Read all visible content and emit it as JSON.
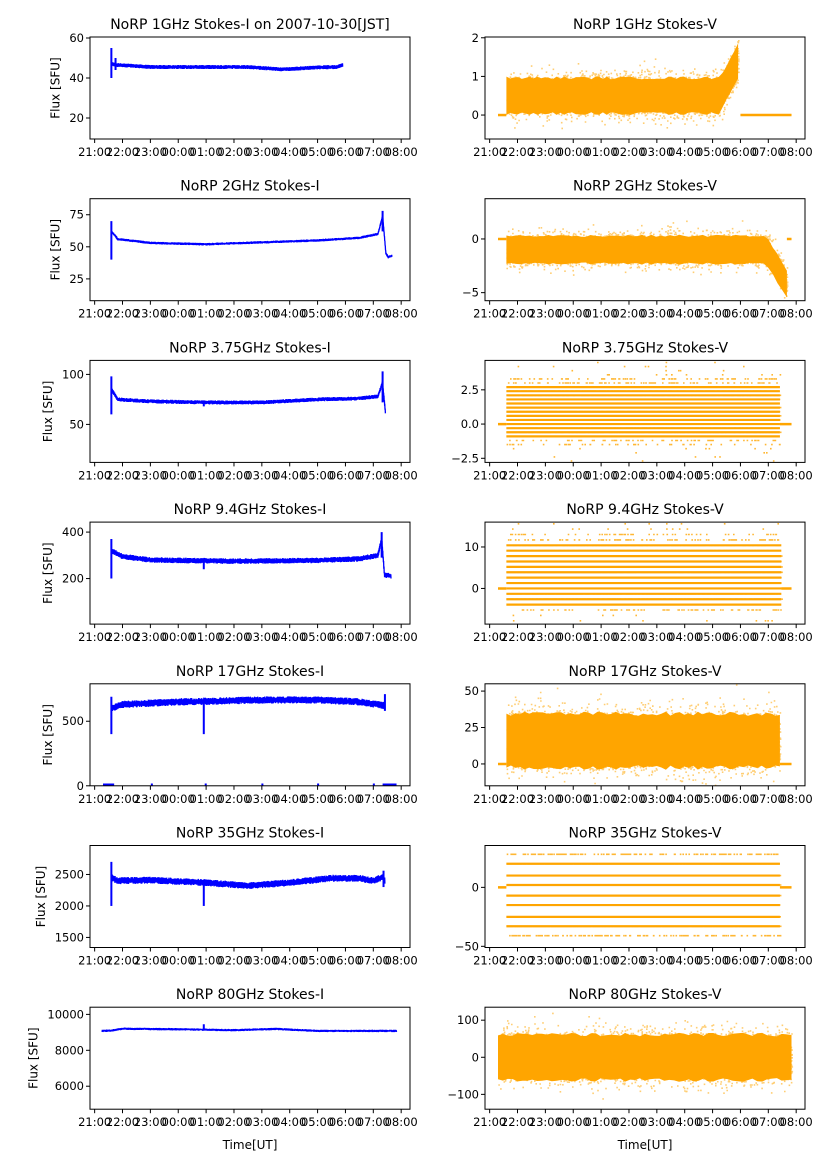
{
  "figure": {
    "xlabel": "Time[UT]",
    "ylabel": "Flux [SFU]"
  },
  "xticks": [
    "21:00",
    "22:00",
    "23:00",
    "00:00",
    "01:00",
    "02:00",
    "03:00",
    "04:00",
    "05:00",
    "06:00",
    "07:00",
    "08:00"
  ],
  "xlim": [
    "20:50",
    "08:19"
  ],
  "colors": {
    "stokes_i": "#0000ff",
    "stokes_v": "#ffa500"
  },
  "chart_data": [
    {
      "type": "line",
      "title": "NoRP 1GHz Stokes-I on 2007-10-30[JST]",
      "ylabel": "Flux [SFU]",
      "ylim": [
        9.5,
        60.5
      ],
      "yticks": [
        "20",
        "40",
        "60"
      ],
      "ytick_values": [
        20,
        40,
        60
      ],
      "keypoints": [
        [
          "21:36",
          47
        ],
        [
          "21:50",
          46.5
        ],
        [
          "23:00",
          45.5
        ],
        [
          "01:00",
          45.5
        ],
        [
          "02:30",
          45.5
        ],
        [
          "03:45",
          44.3
        ],
        [
          "05:00",
          45.3
        ],
        [
          "05:40",
          45.5
        ],
        [
          "05:54",
          46.5
        ]
      ],
      "noise": 1.0,
      "spikes": [
        [
          "21:36",
          40,
          55
        ],
        [
          "21:45",
          44,
          50
        ]
      ]
    },
    {
      "type": "scatter",
      "title": "NoRP 1GHz Stokes-V",
      "ylim": [
        -0.62,
        2.02
      ],
      "yticks": [
        "0",
        "1",
        "2"
      ],
      "ytick_values": [
        0,
        1,
        2
      ],
      "dist": "cloud",
      "range": [
        "21:36",
        "05:55"
      ],
      "mean": 0.5,
      "sd": 0.25,
      "rise": {
        "start": "05:15",
        "end": "05:55",
        "to": 1.4
      },
      "zero_segments": [
        [
          "21:18",
          "21:36"
        ],
        [
          "06:00",
          "07:50"
        ]
      ]
    },
    {
      "type": "line",
      "title": "NoRP 2GHz Stokes-I",
      "ylabel": "Flux [SFU]",
      "ylim": [
        8,
        87.5
      ],
      "yticks": [
        "25",
        "50",
        "75"
      ],
      "ytick_values": [
        25,
        50,
        75
      ],
      "keypoints": [
        [
          "21:36",
          62
        ],
        [
          "21:50",
          56
        ],
        [
          "23:00",
          53
        ],
        [
          "01:00",
          52
        ],
        [
          "03:00",
          53.5
        ],
        [
          "05:00",
          55
        ],
        [
          "06:30",
          57
        ],
        [
          "07:10",
          60
        ],
        [
          "07:20",
          74
        ],
        [
          "07:27",
          45
        ],
        [
          "07:32",
          42
        ],
        [
          "07:40",
          43
        ]
      ],
      "noise": 1.0,
      "spikes": [
        [
          "21:36",
          40,
          70
        ],
        [
          "07:20",
          62,
          78
        ]
      ]
    },
    {
      "type": "scatter",
      "title": "NoRP 2GHz Stokes-V",
      "ylim": [
        -5.75,
        3.75
      ],
      "yticks": [
        "0",
        "−5"
      ],
      "ytick_values": [
        0,
        -5
      ],
      "dist": "cloud",
      "range": [
        "21:36",
        "07:40"
      ],
      "mean": -1.0,
      "sd": 0.7,
      "drop": {
        "start": "06:55",
        "end": "07:40",
        "to": -4.2
      },
      "zero_segments": [
        [
          "21:18",
          "21:36"
        ],
        [
          "07:40",
          "07:50"
        ]
      ]
    },
    {
      "type": "line",
      "title": "NoRP 3.75GHz Stokes-I",
      "ylabel": "Flux [SFU]",
      "ylim": [
        12,
        114
      ],
      "yticks": [
        "50",
        "100"
      ],
      "ytick_values": [
        50,
        100
      ],
      "keypoints": [
        [
          "21:36",
          85
        ],
        [
          "21:50",
          75
        ],
        [
          "23:00",
          73
        ],
        [
          "01:00",
          72
        ],
        [
          "03:00",
          72
        ],
        [
          "05:00",
          75
        ],
        [
          "06:30",
          76
        ],
        [
          "07:10",
          78
        ],
        [
          "07:20",
          92
        ],
        [
          "07:26",
          62
        ]
      ],
      "noise": 2,
      "spikes": [
        [
          "21:36",
          60,
          98
        ],
        [
          "00:55",
          68,
          74
        ],
        [
          "07:20",
          72,
          103
        ]
      ]
    },
    {
      "type": "scatter",
      "title": "NoRP 3.75GHz Stokes-V",
      "ylim": [
        -2.8,
        4.65
      ],
      "yticks": [
        "2.5",
        "0.0",
        "−2.5"
      ],
      "ytick_values": [
        2.5,
        0,
        -2.5
      ],
      "dist": "levels",
      "range": [
        "21:36",
        "07:25"
      ],
      "mean": 1.0,
      "sd": 1.3,
      "step": 0.3,
      "lo": -1.5,
      "hi": 3.3,
      "zero_segments": [
        [
          "21:18",
          "21:36"
        ],
        [
          "07:25",
          "07:50"
        ]
      ]
    },
    {
      "type": "line",
      "title": "NoRP 9.4GHz Stokes-I",
      "ylabel": "Flux [SFU]",
      "ylim": [
        4,
        443
      ],
      "yticks": [
        "200",
        "400"
      ],
      "ytick_values": [
        200,
        400
      ],
      "keypoints": [
        [
          "21:36",
          320
        ],
        [
          "22:00",
          295
        ],
        [
          "23:00",
          280
        ],
        [
          "02:00",
          275
        ],
        [
          "05:00",
          278
        ],
        [
          "06:30",
          285
        ],
        [
          "07:10",
          300
        ],
        [
          "07:18",
          370
        ],
        [
          "07:24",
          215
        ],
        [
          "07:38",
          212
        ]
      ],
      "noise": 12,
      "spikes": [
        [
          "21:36",
          200,
          370
        ],
        [
          "00:55",
          240,
          270
        ],
        [
          "07:18",
          290,
          400
        ]
      ]
    },
    {
      "type": "scatter",
      "title": "NoRP 9.4GHz Stokes-V",
      "ylim": [
        -8.6,
        16
      ],
      "yticks": [
        "10",
        "0"
      ],
      "ytick_values": [
        10,
        0
      ],
      "dist": "levels",
      "range": [
        "21:36",
        "07:28"
      ],
      "mean": 3.5,
      "sd": 5,
      "step": 1.3,
      "lo": -5.2,
      "hi": 13.5,
      "zero_segments": [
        [
          "21:18",
          "21:36"
        ],
        [
          "07:28",
          "07:50"
        ]
      ]
    },
    {
      "type": "line",
      "title": "NoRP 17GHz Stokes-I",
      "ylabel": "Flux [SFU]",
      "ylim": [
        0,
        790
      ],
      "yticks": [
        "0",
        "500"
      ],
      "ytick_values": [
        0,
        500
      ],
      "keypoints": [
        [
          "21:36",
          600
        ],
        [
          "22:00",
          630
        ],
        [
          "00:00",
          650
        ],
        [
          "03:00",
          665
        ],
        [
          "05:00",
          665
        ],
        [
          "06:30",
          650
        ],
        [
          "07:25",
          620
        ]
      ],
      "noise": 28,
      "spikes": [
        [
          "21:36",
          400,
          690
        ],
        [
          "00:55",
          400,
          640
        ],
        [
          "07:25",
          580,
          710
        ]
      ],
      "dropouts": [
        [
          "21:18",
          "21:42"
        ],
        [
          "23:01",
          "23:04"
        ],
        [
          "00:57",
          "01:00"
        ],
        [
          "02:59",
          "03:02"
        ],
        [
          "04:59",
          "05:02"
        ],
        [
          "06:59",
          "07:02"
        ],
        [
          "07:20",
          "07:50"
        ]
      ]
    },
    {
      "type": "scatter",
      "title": "NoRP 17GHz Stokes-V",
      "ylim": [
        -15,
        55
      ],
      "yticks": [
        "50",
        "25",
        "0"
      ],
      "ytick_values": [
        50,
        25,
        0
      ],
      "dist": "cloud",
      "range": [
        "21:36",
        "07:25"
      ],
      "mean": 16,
      "sd": 10,
      "zero_segments": [
        [
          "21:18",
          "21:36"
        ],
        [
          "07:25",
          "07:50"
        ]
      ]
    },
    {
      "type": "line",
      "title": "NoRP 35GHz Stokes-I",
      "ylabel": "Flux [SFU]",
      "ylim": [
        1340,
        2960
      ],
      "yticks": [
        "1500",
        "2000",
        "2500"
      ],
      "ytick_values": [
        1500,
        2000,
        2500
      ],
      "keypoints": [
        [
          "21:36",
          2450
        ],
        [
          "21:50",
          2400
        ],
        [
          "23:00",
          2410
        ],
        [
          "01:00",
          2370
        ],
        [
          "02:30",
          2320
        ],
        [
          "04:00",
          2370
        ],
        [
          "05:30",
          2440
        ],
        [
          "06:30",
          2440
        ],
        [
          "07:00",
          2400
        ],
        [
          "07:20",
          2460
        ],
        [
          "07:25",
          2400
        ]
      ],
      "noise": 55,
      "spikes": [
        [
          "21:36",
          2000,
          2700
        ],
        [
          "00:55",
          2000,
          2350
        ],
        [
          "07:22",
          2300,
          2560
        ]
      ]
    },
    {
      "type": "scatter",
      "title": "NoRP 35GHz Stokes-V",
      "ylim": [
        -51,
        35.5
      ],
      "yticks": [
        "0",
        "−50"
      ],
      "ytick_values": [
        0,
        -50
      ],
      "dist": "fixed_levels",
      "range": [
        "21:36",
        "07:25"
      ],
      "levels": [
        28,
        20,
        10,
        2,
        -7,
        -15,
        -25,
        -33,
        -41
      ],
      "sparse_levels": [
        28,
        -41
      ],
      "zero_segments": [
        [
          "21:18",
          "21:36"
        ],
        [
          "07:25",
          "07:50"
        ]
      ]
    },
    {
      "type": "line",
      "title": "NoRP 80GHz Stokes-I",
      "ylabel": "Flux [SFU]",
      "ylim": [
        4720,
        10400
      ],
      "yticks": [
        "6000",
        "8000",
        "10000"
      ],
      "ytick_values": [
        6000,
        8000,
        10000
      ],
      "keypoints": [
        [
          "21:16",
          9080
        ],
        [
          "21:35",
          9100
        ],
        [
          "22:00",
          9200
        ],
        [
          "00:00",
          9170
        ],
        [
          "00:55",
          9150
        ],
        [
          "02:00",
          9120
        ],
        [
          "03:30",
          9190
        ],
        [
          "05:00",
          9080
        ],
        [
          "07:50",
          9080
        ]
      ],
      "noise": 65,
      "spikes": [
        [
          "00:55",
          9100,
          9450
        ]
      ]
    },
    {
      "type": "scatter",
      "title": "NoRP 80GHz Stokes-V",
      "ylim": [
        -140,
        135
      ],
      "yticks": [
        "100",
        "0",
        "−100"
      ],
      "ytick_values": [
        100,
        0,
        -100
      ],
      "dist": "cloud",
      "range": [
        "21:18",
        "07:50"
      ],
      "mean": 0,
      "sd": 33,
      "zero_segments": []
    }
  ]
}
